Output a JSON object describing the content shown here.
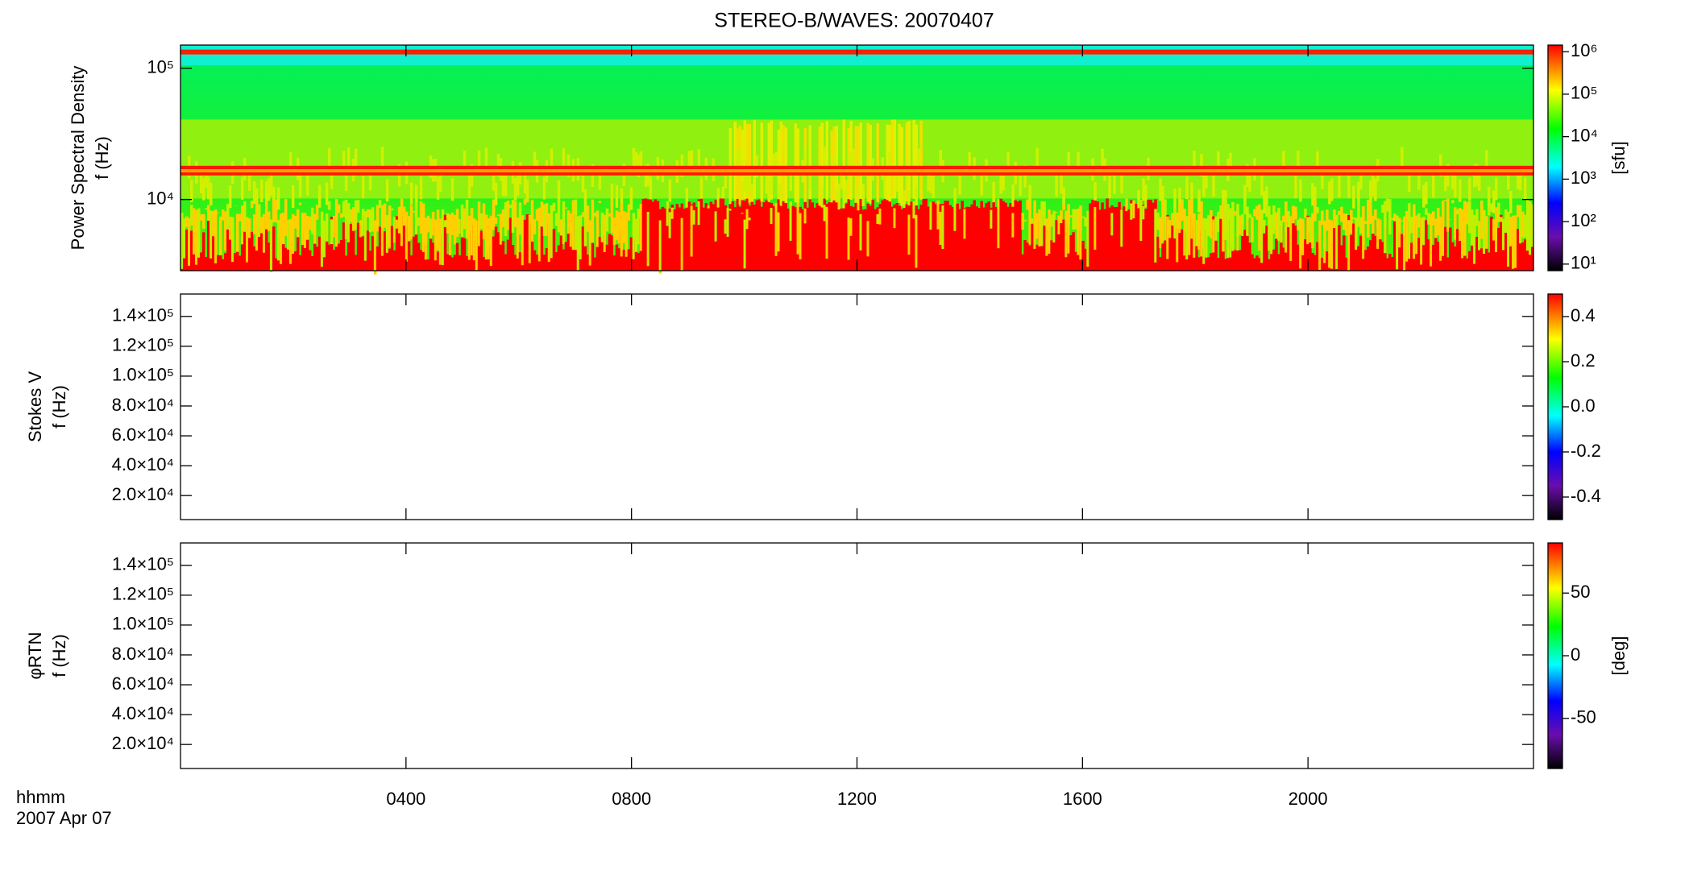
{
  "title": "STEREO-B/WAVES: 20070407",
  "x_label": [
    "hhmm",
    "2007 Apr 07"
  ],
  "chart_data": [
    {
      "type": "spectrogram",
      "ylabel": [
        "Power Spectral Density",
        "f (Hz)"
      ],
      "ylog": true,
      "xlim": [
        0,
        24
      ],
      "ylim": [
        2870,
        150000
      ],
      "yticks": [
        {
          "value": 10000,
          "label": "10⁴"
        },
        {
          "value": 100000,
          "label": "10⁵"
        }
      ],
      "colorbar": {
        "log": true,
        "lim": [
          7,
          1430000
        ],
        "label": "[sfu]",
        "ticks": [
          {
            "value": 10,
            "label": "10¹"
          },
          {
            "value": 100,
            "label": "10²"
          },
          {
            "value": 1000,
            "label": "10³"
          },
          {
            "value": 10000,
            "label": "10⁴"
          },
          {
            "value": 100000,
            "label": "10⁵"
          },
          {
            "value": 1000000,
            "label": "10⁶"
          }
        ]
      }
    },
    {
      "type": "spectrogram-empty",
      "ylabel": [
        "Stokes V",
        "f (Hz)"
      ],
      "ylog": false,
      "xlim": [
        0,
        24
      ],
      "ylim": [
        3900,
        155000
      ],
      "yticks": [
        {
          "value": 20000,
          "label": "2.0×10⁴"
        },
        {
          "value": 40000,
          "label": "4.0×10⁴"
        },
        {
          "value": 60000,
          "label": "6.0×10⁴"
        },
        {
          "value": 80000,
          "label": "8.0×10⁴"
        },
        {
          "value": 100000,
          "label": "1.0×10⁵"
        },
        {
          "value": 120000,
          "label": "1.2×10⁵"
        },
        {
          "value": 140000,
          "label": "1.4×10⁵"
        }
      ],
      "colorbar": {
        "log": false,
        "lim": [
          -0.5,
          0.5
        ],
        "ticks": [
          {
            "value": -0.4,
            "label": "-0.4"
          },
          {
            "value": -0.2,
            "label": "-0.2"
          },
          {
            "value": 0,
            "label": "0.0"
          },
          {
            "value": 0.2,
            "label": "0.2"
          },
          {
            "value": 0.4,
            "label": "0.4"
          }
        ]
      }
    },
    {
      "type": "spectrogram-empty",
      "ylabel": [
        "φRTN",
        "f (Hz)"
      ],
      "ylog": false,
      "xlim": [
        0,
        24
      ],
      "ylim": [
        3900,
        155000
      ],
      "yticks": [
        {
          "value": 20000,
          "label": "2.0×10⁴"
        },
        {
          "value": 40000,
          "label": "4.0×10⁴"
        },
        {
          "value": 60000,
          "label": "6.0×10⁴"
        },
        {
          "value": 80000,
          "label": "8.0×10⁴"
        },
        {
          "value": 100000,
          "label": "1.0×10⁵"
        },
        {
          "value": 120000,
          "label": "1.2×10⁵"
        },
        {
          "value": 140000,
          "label": "1.4×10⁵"
        }
      ],
      "colorbar": {
        "log": false,
        "lim": [
          -90,
          90
        ],
        "label": "[deg]",
        "ticks": [
          -50,
          0,
          50
        ]
      },
      "xticks": [
        {
          "value": 4,
          "label": "0400"
        },
        {
          "value": 8,
          "label": "0800"
        },
        {
          "value": 12,
          "label": "1200"
        },
        {
          "value": 16,
          "label": "1600"
        },
        {
          "value": 20,
          "label": "2000"
        }
      ]
    }
  ]
}
